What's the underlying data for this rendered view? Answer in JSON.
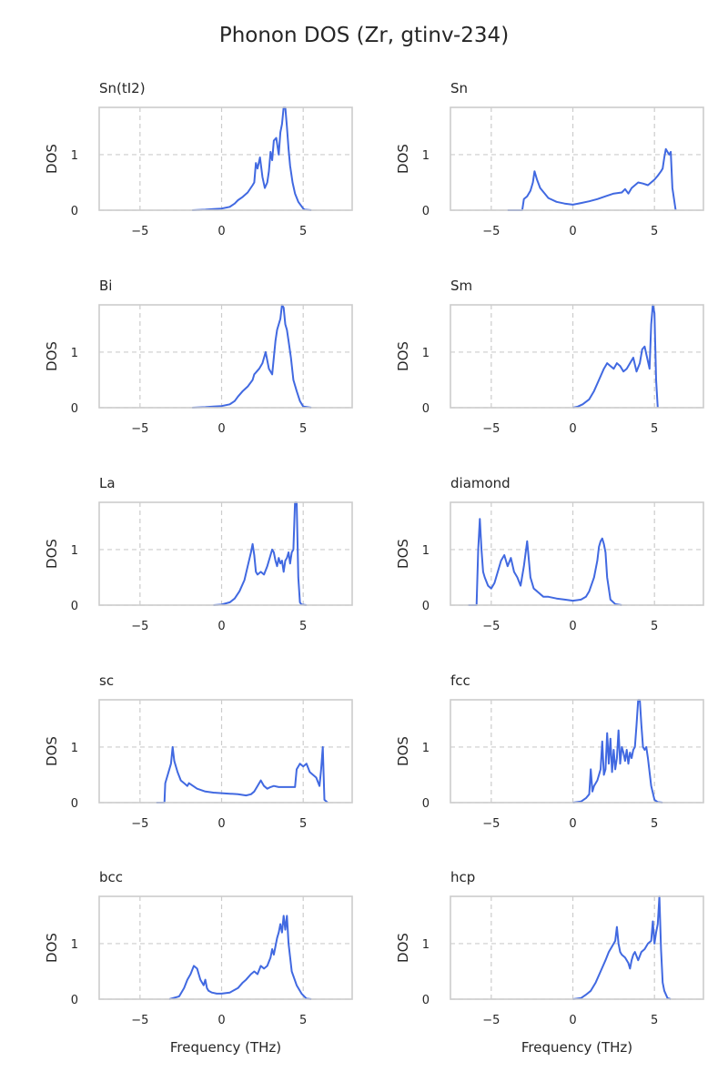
{
  "figure": {
    "title": "Phonon DOS (Zr, gtinv-234)",
    "line_color": "#4169e1",
    "grid_color": "#cccccc",
    "frame_color": "#cccccc"
  },
  "chart_data": [
    {
      "type": "line",
      "title": "Sn(tI2)",
      "xlabel": "",
      "ylabel": "DOS",
      "xlim": [
        -7.5,
        8
      ],
      "ylim": [
        0,
        1.85
      ],
      "xticks": [
        -5,
        0,
        5
      ],
      "yticks": [
        0,
        1
      ],
      "grid": true,
      "show_xlabel": false,
      "series": [
        {
          "x": [
            -1.8,
            -1,
            -0.5,
            0,
            0.5,
            0.8,
            1,
            1.3,
            1.6,
            1.9,
            2,
            2.1,
            2.2,
            2.35,
            2.5,
            2.65,
            2.8,
            2.9,
            3,
            3.1,
            3.2,
            3.35,
            3.5,
            3.6,
            3.7,
            3.8,
            3.9,
            4,
            4.1,
            4.2,
            4.35,
            4.5,
            4.7,
            5,
            5.1,
            5.5
          ],
          "y": [
            0,
            0.01,
            0.02,
            0.03,
            0.06,
            0.12,
            0.18,
            0.24,
            0.32,
            0.45,
            0.5,
            0.85,
            0.75,
            0.95,
            0.6,
            0.4,
            0.5,
            0.7,
            1.05,
            0.9,
            1.25,
            1.3,
            1.0,
            1.4,
            1.55,
            1.85,
            1.85,
            1.5,
            1.1,
            0.8,
            0.5,
            0.3,
            0.15,
            0.03,
            0.01,
            0
          ]
        }
      ]
    },
    {
      "type": "line",
      "title": "Sn",
      "xlabel": "",
      "ylabel": "DOS",
      "xlim": [
        -7.5,
        8
      ],
      "ylim": [
        0,
        1.85
      ],
      "xticks": [
        -5,
        0,
        5
      ],
      "yticks": [
        0,
        1
      ],
      "grid": true,
      "show_xlabel": false,
      "series": [
        {
          "x": [
            -4,
            -3.1,
            -3,
            -2.8,
            -2.6,
            -2.45,
            -2.35,
            -2.2,
            -2,
            -1.5,
            -1,
            -0.5,
            0,
            0.5,
            1,
            1.5,
            2,
            2.5,
            3,
            3.2,
            3.4,
            3.6,
            4,
            4.3,
            4.6,
            5,
            5.2,
            5.4,
            5.5,
            5.6,
            5.7,
            5.8,
            5.9,
            6,
            6.1,
            6.3
          ],
          "y": [
            0,
            0,
            0.2,
            0.25,
            0.35,
            0.5,
            0.7,
            0.55,
            0.4,
            0.22,
            0.15,
            0.12,
            0.1,
            0.13,
            0.16,
            0.2,
            0.25,
            0.3,
            0.32,
            0.38,
            0.3,
            0.4,
            0.5,
            0.48,
            0.45,
            0.55,
            0.62,
            0.7,
            0.75,
            0.95,
            1.1,
            1.05,
            1.0,
            1.05,
            0.4,
            0
          ]
        }
      ]
    },
    {
      "type": "line",
      "title": "Bi",
      "xlabel": "",
      "ylabel": "DOS",
      "xlim": [
        -7.5,
        8
      ],
      "ylim": [
        0,
        1.85
      ],
      "xticks": [
        -5,
        0,
        5
      ],
      "yticks": [
        0,
        1
      ],
      "grid": true,
      "show_xlabel": false,
      "series": [
        {
          "x": [
            -1.8,
            -1,
            -0.5,
            0,
            0.5,
            0.8,
            1,
            1.3,
            1.6,
            1.9,
            2,
            2.15,
            2.3,
            2.5,
            2.7,
            2.9,
            3.1,
            3.2,
            3.3,
            3.4,
            3.5,
            3.6,
            3.7,
            3.8,
            3.9,
            4,
            4.1,
            4.25,
            4.4,
            4.6,
            4.8,
            5,
            5.5
          ],
          "y": [
            0,
            0.01,
            0.02,
            0.03,
            0.06,
            0.12,
            0.2,
            0.3,
            0.38,
            0.5,
            0.6,
            0.65,
            0.7,
            0.8,
            1.0,
            0.7,
            0.6,
            0.9,
            1.2,
            1.4,
            1.5,
            1.6,
            1.85,
            1.8,
            1.5,
            1.4,
            1.2,
            0.9,
            0.5,
            0.3,
            0.12,
            0.02,
            0
          ]
        }
      ]
    },
    {
      "type": "line",
      "title": "Sm",
      "xlabel": "",
      "ylabel": "DOS",
      "xlim": [
        -7.5,
        8
      ],
      "ylim": [
        0,
        1.85
      ],
      "xticks": [
        -5,
        0,
        5
      ],
      "yticks": [
        0,
        1
      ],
      "grid": true,
      "show_xlabel": false,
      "series": [
        {
          "x": [
            0,
            0.3,
            0.6,
            1,
            1.3,
            1.6,
            1.9,
            2.1,
            2.3,
            2.5,
            2.7,
            2.9,
            3.1,
            3.3,
            3.5,
            3.7,
            3.9,
            4.1,
            4.25,
            4.4,
            4.55,
            4.7,
            4.8,
            4.9,
            5,
            5.1,
            5.2
          ],
          "y": [
            0,
            0.02,
            0.06,
            0.15,
            0.3,
            0.5,
            0.7,
            0.8,
            0.75,
            0.7,
            0.8,
            0.75,
            0.65,
            0.7,
            0.8,
            0.9,
            0.65,
            0.8,
            1.05,
            1.1,
            0.9,
            0.7,
            1.5,
            1.85,
            1.7,
            0.5,
            0
          ]
        }
      ]
    },
    {
      "type": "line",
      "title": "La",
      "xlabel": "",
      "ylabel": "DOS",
      "xlim": [
        -7.5,
        8
      ],
      "ylim": [
        0,
        1.85
      ],
      "xticks": [
        -5,
        0,
        5
      ],
      "yticks": [
        0,
        1
      ],
      "grid": true,
      "show_xlabel": false,
      "series": [
        {
          "x": [
            -0.5,
            0,
            0.5,
            0.8,
            1.1,
            1.4,
            1.6,
            1.8,
            1.9,
            2,
            2.1,
            2.2,
            2.4,
            2.6,
            2.8,
            3,
            3.1,
            3.2,
            3.3,
            3.4,
            3.5,
            3.6,
            3.7,
            3.8,
            3.9,
            4,
            4.1,
            4.2,
            4.3,
            4.4,
            4.5,
            4.6,
            4.7,
            4.8,
            4.9,
            5.2
          ],
          "y": [
            0,
            0.01,
            0.05,
            0.12,
            0.25,
            0.45,
            0.7,
            0.95,
            1.1,
            0.9,
            0.6,
            0.55,
            0.6,
            0.55,
            0.7,
            0.9,
            1.0,
            0.95,
            0.8,
            0.7,
            0.85,
            0.75,
            0.8,
            0.6,
            0.8,
            0.85,
            0.95,
            0.75,
            0.95,
            1.0,
            1.85,
            1.85,
            0.5,
            0.05,
            0.01,
            0
          ]
        }
      ]
    },
    {
      "type": "line",
      "title": "diamond",
      "xlabel": "",
      "ylabel": "DOS",
      "xlim": [
        -7.5,
        8
      ],
      "ylim": [
        0,
        1.85
      ],
      "xticks": [
        -5,
        0,
        5
      ],
      "yticks": [
        0,
        1
      ],
      "grid": true,
      "show_xlabel": false,
      "series": [
        {
          "x": [
            -6.4,
            -5.9,
            -5.8,
            -5.7,
            -5.6,
            -5.5,
            -5.4,
            -5.2,
            -5.0,
            -4.8,
            -4.6,
            -4.4,
            -4.2,
            -4.0,
            -3.8,
            -3.6,
            -3.4,
            -3.2,
            -3.0,
            -2.8,
            -2.6,
            -2.4,
            -2.2,
            -2.0,
            -1.8,
            -1.5,
            -1.0,
            -0.5,
            0,
            0.5,
            0.8,
            1.0,
            1.3,
            1.5,
            1.6,
            1.7,
            1.8,
            1.9,
            2.0,
            2.1,
            2.3,
            2.6,
            3.0
          ],
          "y": [
            0,
            0,
            1.0,
            1.55,
            1.0,
            0.6,
            0.5,
            0.35,
            0.3,
            0.4,
            0.6,
            0.8,
            0.9,
            0.7,
            0.85,
            0.6,
            0.5,
            0.35,
            0.7,
            1.15,
            0.5,
            0.3,
            0.25,
            0.2,
            0.15,
            0.15,
            0.12,
            0.1,
            0.08,
            0.1,
            0.15,
            0.25,
            0.5,
            0.8,
            1.05,
            1.15,
            1.2,
            1.1,
            0.95,
            0.5,
            0.1,
            0.02,
            0
          ]
        }
      ]
    },
    {
      "type": "line",
      "title": "sc",
      "xlabel": "",
      "ylabel": "DOS",
      "xlim": [
        -7.5,
        8
      ],
      "ylim": [
        0,
        1.85
      ],
      "xticks": [
        -5,
        0,
        5
      ],
      "yticks": [
        0,
        1
      ],
      "grid": true,
      "show_xlabel": false,
      "series": [
        {
          "x": [
            -4,
            -3.5,
            -3.45,
            -3.3,
            -3.1,
            -3.0,
            -2.9,
            -2.7,
            -2.5,
            -2.3,
            -2.1,
            -2,
            -1.5,
            -1,
            -0.5,
            0,
            0.5,
            1,
            1.5,
            1.8,
            2,
            2.2,
            2.4,
            2.6,
            2.8,
            3,
            3.2,
            3.5,
            4,
            4.5,
            4.6,
            4.8,
            5,
            5.2,
            5.4,
            5.6,
            5.8,
            6,
            6.1,
            6.2,
            6.3,
            6.5
          ],
          "y": [
            0,
            0,
            0.35,
            0.5,
            0.7,
            1.0,
            0.75,
            0.55,
            0.4,
            0.35,
            0.3,
            0.35,
            0.25,
            0.2,
            0.18,
            0.17,
            0.16,
            0.15,
            0.13,
            0.15,
            0.2,
            0.3,
            0.4,
            0.3,
            0.25,
            0.28,
            0.3,
            0.28,
            0.28,
            0.28,
            0.6,
            0.7,
            0.65,
            0.7,
            0.55,
            0.5,
            0.45,
            0.3,
            0.6,
            1.0,
            0.05,
            0
          ]
        }
      ]
    },
    {
      "type": "line",
      "title": "fcc",
      "xlabel": "",
      "ylabel": "DOS",
      "xlim": [
        -7.5,
        8
      ],
      "ylim": [
        0,
        1.85
      ],
      "xticks": [
        -5,
        0,
        5
      ],
      "yticks": [
        0,
        1
      ],
      "grid": true,
      "show_xlabel": false,
      "series": [
        {
          "x": [
            0,
            0.5,
            0.8,
            1.0,
            1.1,
            1.2,
            1.3,
            1.5,
            1.7,
            1.8,
            1.9,
            2.0,
            2.1,
            2.2,
            2.3,
            2.4,
            2.5,
            2.6,
            2.7,
            2.8,
            2.9,
            3.0,
            3.1,
            3.2,
            3.3,
            3.4,
            3.5,
            3.6,
            3.7,
            3.8,
            3.9,
            4.0,
            4.1,
            4.2,
            4.3,
            4.4,
            4.5,
            4.6,
            4.8,
            5.0,
            5.2,
            5.5
          ],
          "y": [
            0,
            0.02,
            0.08,
            0.15,
            0.6,
            0.2,
            0.3,
            0.4,
            0.6,
            1.1,
            0.5,
            0.6,
            1.25,
            0.7,
            1.15,
            0.55,
            0.95,
            0.6,
            0.8,
            1.3,
            0.7,
            1.0,
            0.9,
            0.75,
            0.95,
            0.7,
            0.9,
            0.8,
            0.95,
            1.0,
            1.4,
            1.85,
            1.85,
            1.4,
            1.0,
            0.95,
            1.0,
            0.8,
            0.3,
            0.05,
            0.01,
            0
          ]
        }
      ]
    },
    {
      "type": "line",
      "title": "bcc",
      "xlabel": "Frequency (THz)",
      "ylabel": "DOS",
      "xlim": [
        -7.5,
        8
      ],
      "ylim": [
        0,
        1.85
      ],
      "xticks": [
        -5,
        0,
        5
      ],
      "yticks": [
        0,
        1
      ],
      "grid": true,
      "show_xlabel": true,
      "series": [
        {
          "x": [
            -3.2,
            -2.6,
            -2.3,
            -2.1,
            -1.9,
            -1.7,
            -1.5,
            -1.3,
            -1.1,
            -1.0,
            -0.9,
            -0.8,
            -0.6,
            -0.3,
            0,
            0.5,
            1,
            1.3,
            1.5,
            1.8,
            2,
            2.2,
            2.4,
            2.6,
            2.8,
            3,
            3.1,
            3.2,
            3.3,
            3.4,
            3.5,
            3.6,
            3.7,
            3.8,
            3.9,
            4,
            4.1,
            4.3,
            4.6,
            4.9,
            5.2,
            5.5
          ],
          "y": [
            0,
            0.05,
            0.2,
            0.35,
            0.45,
            0.6,
            0.55,
            0.35,
            0.25,
            0.35,
            0.2,
            0.15,
            0.12,
            0.1,
            0.1,
            0.12,
            0.2,
            0.3,
            0.35,
            0.45,
            0.5,
            0.45,
            0.6,
            0.55,
            0.6,
            0.75,
            0.9,
            0.8,
            0.95,
            1.1,
            1.2,
            1.35,
            1.2,
            1.5,
            1.25,
            1.5,
            1.0,
            0.5,
            0.25,
            0.1,
            0.01,
            0
          ]
        }
      ]
    },
    {
      "type": "line",
      "title": "hcp",
      "xlabel": "Frequency (THz)",
      "ylabel": "DOS",
      "xlim": [
        -7.5,
        8
      ],
      "ylim": [
        0,
        1.85
      ],
      "xticks": [
        -5,
        0,
        5
      ],
      "yticks": [
        0,
        1
      ],
      "grid": true,
      "show_xlabel": true,
      "series": [
        {
          "x": [
            0,
            0.5,
            0.8,
            1.1,
            1.4,
            1.7,
            2.0,
            2.2,
            2.4,
            2.6,
            2.7,
            2.8,
            2.9,
            3.0,
            3.2,
            3.4,
            3.5,
            3.6,
            3.7,
            3.8,
            4.0,
            4.2,
            4.4,
            4.6,
            4.8,
            4.9,
            5.0,
            5.1,
            5.2,
            5.3,
            5.4,
            5.5,
            5.6,
            5.8,
            6.0
          ],
          "y": [
            0,
            0.02,
            0.08,
            0.15,
            0.3,
            0.5,
            0.7,
            0.85,
            0.95,
            1.05,
            1.3,
            1.0,
            0.85,
            0.8,
            0.75,
            0.65,
            0.55,
            0.7,
            0.8,
            0.85,
            0.7,
            0.85,
            0.9,
            1.0,
            1.05,
            1.4,
            1.0,
            1.2,
            1.35,
            1.85,
            0.9,
            0.3,
            0.15,
            0.02,
            0
          ]
        }
      ]
    }
  ]
}
